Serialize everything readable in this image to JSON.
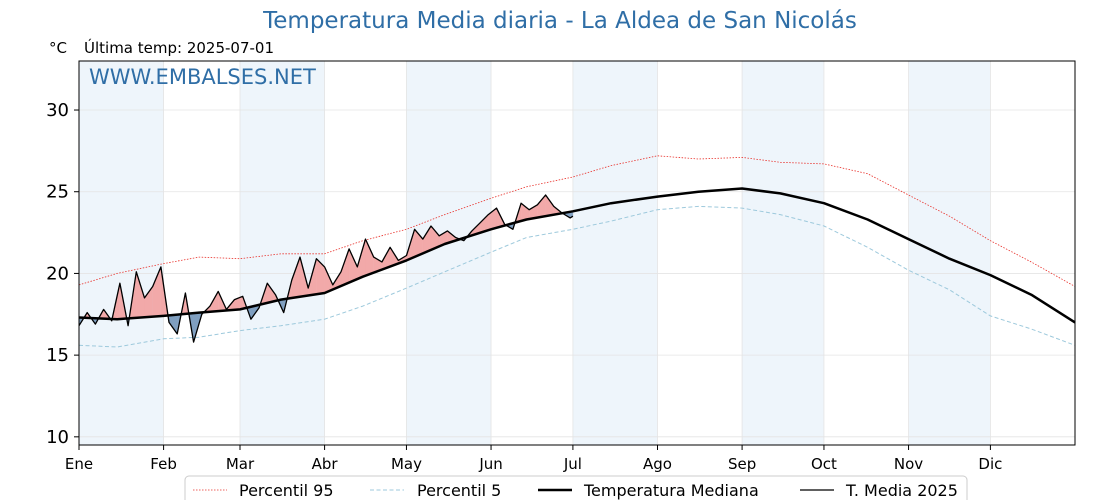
{
  "title": "Temperatura Media diaria - La Aldea de San Nicolás",
  "unit": "°C",
  "last_temp_label": "Última temp: 2025-07-01",
  "watermark": "WWW.EMBALSES.NET",
  "colors": {
    "title": "#2f6ea6",
    "p95": "#e8302a",
    "p5": "#9dc9dc",
    "median": "#000000",
    "media2025": "#000000",
    "above_fill": "#f2a9a9",
    "below_fill": "#7f9fc0",
    "month_band": "#eef5fb"
  },
  "chart_data": {
    "type": "line",
    "x_unit": "day of year",
    "ylim": [
      9.5,
      33
    ],
    "xlim": [
      1,
      366
    ],
    "y_ticks": [
      10,
      15,
      20,
      25,
      30
    ],
    "month_labels": [
      "Ene",
      "Feb",
      "Mar",
      "Abr",
      "May",
      "Jun",
      "Jul",
      "Ago",
      "Sep",
      "Oct",
      "Nov",
      "Dic"
    ],
    "month_start_days": [
      1,
      32,
      60,
      91,
      121,
      152,
      182,
      213,
      244,
      274,
      305,
      335
    ],
    "grid": true,
    "legend_position": "bottom-center",
    "series": [
      {
        "name": "Percentil 95",
        "style": "dotted",
        "x": [
          1,
          15,
          32,
          45,
          60,
          75,
          91,
          105,
          121,
          135,
          152,
          165,
          182,
          196,
          213,
          228,
          244,
          258,
          274,
          290,
          305,
          320,
          335,
          350,
          366
        ],
        "values": [
          19.3,
          20.0,
          20.6,
          21.0,
          20.9,
          21.2,
          21.2,
          22.0,
          22.7,
          23.6,
          24.6,
          25.3,
          25.9,
          26.6,
          27.2,
          27.0,
          27.1,
          26.8,
          26.7,
          26.1,
          24.8,
          23.5,
          22.0,
          20.7,
          19.2
        ]
      },
      {
        "name": "Percentil 5",
        "style": "dashed",
        "x": [
          1,
          15,
          32,
          45,
          60,
          75,
          91,
          105,
          121,
          135,
          152,
          165,
          182,
          196,
          213,
          228,
          244,
          258,
          274,
          290,
          305,
          320,
          335,
          350,
          366
        ],
        "values": [
          15.6,
          15.5,
          16.0,
          16.1,
          16.5,
          16.8,
          17.2,
          18.0,
          19.1,
          20.1,
          21.3,
          22.2,
          22.7,
          23.2,
          23.9,
          24.1,
          24.0,
          23.6,
          22.9,
          21.6,
          20.2,
          19.0,
          17.4,
          16.6,
          15.6
        ]
      },
      {
        "name": "Temperatura Mediana",
        "style": "solid-thick",
        "x": [
          1,
          15,
          32,
          45,
          60,
          75,
          91,
          105,
          121,
          135,
          152,
          165,
          182,
          196,
          213,
          228,
          244,
          258,
          274,
          290,
          305,
          320,
          335,
          350,
          366
        ],
        "values": [
          17.3,
          17.2,
          17.4,
          17.6,
          17.8,
          18.4,
          18.8,
          19.8,
          20.8,
          21.8,
          22.7,
          23.3,
          23.8,
          24.3,
          24.7,
          25.0,
          25.2,
          24.9,
          24.3,
          23.3,
          22.1,
          20.9,
          19.9,
          18.7,
          17.0
        ]
      },
      {
        "name": "T. Media 2025",
        "style": "solid-thin",
        "x": [
          1,
          4,
          7,
          10,
          13,
          16,
          19,
          22,
          25,
          28,
          31,
          34,
          37,
          40,
          43,
          46,
          49,
          52,
          55,
          58,
          61,
          64,
          67,
          70,
          73,
          76,
          79,
          82,
          85,
          88,
          91,
          94,
          97,
          100,
          103,
          106,
          109,
          112,
          115,
          118,
          121,
          124,
          127,
          130,
          133,
          136,
          139,
          142,
          145,
          148,
          151,
          154,
          157,
          160,
          163,
          166,
          169,
          172,
          175,
          178,
          181,
          182
        ],
        "values": [
          16.8,
          17.6,
          16.9,
          17.8,
          17.1,
          19.4,
          16.8,
          20.1,
          18.5,
          19.2,
          20.4,
          17.0,
          16.3,
          18.8,
          15.8,
          17.5,
          18.0,
          18.9,
          17.8,
          18.4,
          18.6,
          17.2,
          17.9,
          19.4,
          18.7,
          17.6,
          19.6,
          21.0,
          19.1,
          20.9,
          20.4,
          19.3,
          20.1,
          21.5,
          20.4,
          22.1,
          21.0,
          20.7,
          21.6,
          20.8,
          21.1,
          22.7,
          22.1,
          22.9,
          22.3,
          22.6,
          22.2,
          22.0,
          22.6,
          23.1,
          23.6,
          24.0,
          23.0,
          22.7,
          24.3,
          23.9,
          24.2,
          24.8,
          24.1,
          23.7,
          23.4,
          23.5
        ]
      }
    ]
  }
}
